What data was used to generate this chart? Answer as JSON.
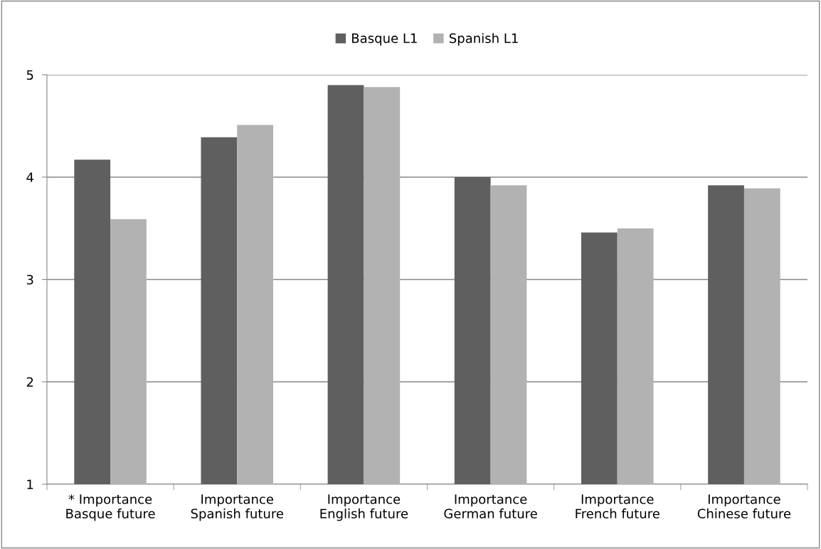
{
  "chart_data": {
    "type": "bar",
    "categories": [
      "* Importance\nBasque future",
      "Importance\nSpanish future",
      "Importance\nEnglish future",
      "Importance\nGerman future",
      "Importance\nFrench future",
      "Importance\nChinese future"
    ],
    "series": [
      {
        "name": "Basque L1",
        "color": "#5f5f5f",
        "values": [
          4.17,
          4.39,
          4.9,
          4.0,
          3.46,
          3.92
        ]
      },
      {
        "name": "Spanish L1",
        "color": "#b2b2b2",
        "values": [
          3.59,
          4.51,
          4.88,
          3.92,
          3.5,
          3.89
        ]
      }
    ],
    "ylim": [
      1,
      5
    ],
    "yticks": [
      1,
      2,
      3,
      4,
      5
    ],
    "grid": "y",
    "legend": "top"
  }
}
